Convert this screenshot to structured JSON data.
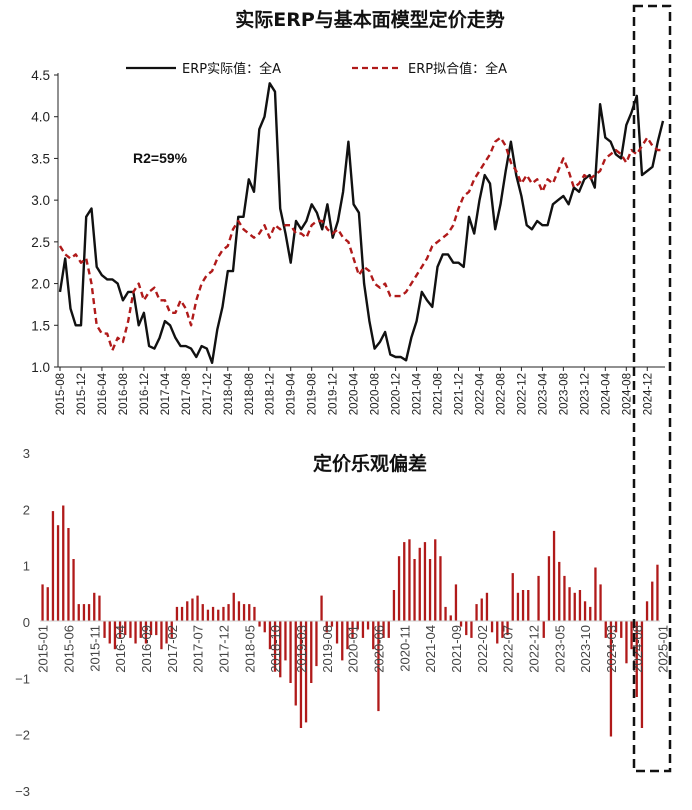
{
  "chart_data": [
    {
      "type": "line",
      "title": "实际ERP与基本面模型定价走势",
      "annotation": "R2=59%",
      "ylim": [
        1.0,
        4.5
      ],
      "yticks": [
        "1.0",
        "1.5",
        "2.0",
        "2.5",
        "3.0",
        "3.5",
        "4.0",
        "4.5"
      ],
      "x_start": "2015-08",
      "xtick_labels": [
        "2015-08",
        "2015-12",
        "2016-04",
        "2016-08",
        "2016-12",
        "2017-04",
        "2017-08",
        "2017-12",
        "2018-04",
        "2018-08",
        "2018-12",
        "2019-04",
        "2019-08",
        "2019-12",
        "2020-04",
        "2020-08",
        "2020-12",
        "2021-04",
        "2021-08",
        "2021-12",
        "2022-04",
        "2022-08",
        "2022-12",
        "2023-04",
        "2023-08",
        "2023-12",
        "2024-04",
        "2024-08",
        "2024-12"
      ],
      "legend_position": "top",
      "series": [
        {
          "name": "ERP实际值：全A",
          "color": "#111111",
          "style": "solid",
          "values": [
            1.9,
            2.3,
            1.7,
            1.5,
            1.5,
            2.8,
            2.9,
            2.2,
            2.1,
            2.05,
            2.05,
            2.0,
            1.8,
            1.9,
            1.9,
            1.5,
            1.65,
            1.25,
            1.22,
            1.35,
            1.55,
            1.5,
            1.35,
            1.25,
            1.25,
            1.22,
            1.12,
            1.25,
            1.22,
            1.05,
            1.45,
            1.72,
            2.15,
            2.15,
            2.8,
            2.8,
            3.25,
            3.1,
            3.85,
            4.0,
            4.4,
            4.3,
            2.9,
            2.6,
            2.25,
            2.75,
            2.65,
            2.75,
            2.95,
            2.85,
            2.65,
            2.95,
            2.55,
            2.75,
            3.1,
            3.7,
            2.95,
            2.85,
            2.0,
            1.55,
            1.22,
            1.3,
            1.42,
            1.15,
            1.12,
            1.12,
            1.08,
            1.35,
            1.55,
            1.9,
            1.8,
            1.72,
            2.2,
            2.35,
            2.35,
            2.25,
            2.25,
            2.2,
            2.8,
            2.6,
            3.0,
            3.3,
            3.2,
            2.65,
            2.95,
            3.35,
            3.7,
            3.3,
            3.05,
            2.7,
            2.65,
            2.75,
            2.7,
            2.7,
            2.95,
            3.0,
            3.05,
            2.95,
            3.15,
            3.1,
            3.25,
            3.3,
            3.15,
            4.15,
            3.75,
            3.7,
            3.55,
            3.5,
            3.9,
            4.05,
            4.25,
            3.3,
            3.35,
            3.4,
            3.7,
            3.95
          ]
        },
        {
          "name": "ERP拟合值：全A",
          "color": "#b01a1a",
          "style": "dashed",
          "values": [
            2.45,
            2.35,
            2.3,
            2.35,
            2.25,
            2.3,
            2.0,
            1.5,
            1.4,
            1.4,
            1.2,
            1.35,
            1.3,
            1.55,
            1.9,
            2.0,
            1.8,
            1.9,
            1.95,
            1.8,
            1.8,
            1.65,
            1.65,
            1.8,
            1.7,
            1.5,
            1.8,
            2.0,
            2.1,
            2.15,
            2.3,
            2.4,
            2.45,
            2.65,
            2.75,
            2.65,
            2.6,
            2.55,
            2.6,
            2.7,
            2.55,
            2.7,
            2.65,
            2.7,
            2.7,
            2.6,
            2.6,
            2.55,
            2.7,
            2.75,
            2.75,
            2.65,
            2.6,
            2.65,
            2.55,
            2.5,
            2.3,
            2.1,
            2.2,
            2.15,
            2.0,
            1.95,
            2.0,
            1.85,
            1.85,
            1.85,
            1.9,
            2.0,
            2.1,
            2.2,
            2.3,
            2.45,
            2.5,
            2.55,
            2.6,
            2.7,
            2.9,
            3.05,
            3.1,
            3.25,
            3.35,
            3.45,
            3.55,
            3.7,
            3.75,
            3.65,
            3.45,
            3.35,
            3.2,
            3.3,
            3.2,
            3.25,
            3.1,
            3.25,
            3.2,
            3.35,
            3.5,
            3.35,
            3.15,
            3.2,
            3.3,
            3.25,
            3.3,
            3.35,
            3.5,
            3.55,
            3.6,
            3.55,
            3.45,
            3.6,
            3.55,
            3.65,
            3.75,
            3.65,
            3.6,
            3.6
          ]
        }
      ]
    },
    {
      "type": "bar",
      "title": "定价乐观偏差",
      "ylim": [
        -3,
        3
      ],
      "yticks": [
        "−3",
        "−2",
        "−1",
        "0",
        "1",
        "2",
        "3"
      ],
      "x_start": "2015-01",
      "xtick_labels": [
        "2015-01",
        "2015-06",
        "2015-11",
        "2016-04",
        "2016-09",
        "2017-02",
        "2017-07",
        "2017-12",
        "2018-05",
        "2018-10",
        "2019-03",
        "2019-08",
        "2020-01",
        "2020-06",
        "2020-11",
        "2021-04",
        "2021-09",
        "2022-02",
        "2022-07",
        "2022-12",
        "2023-05",
        "2023-10",
        "2024-03",
        "2024-08",
        "2025-01"
      ],
      "color": "#b01a1a",
      "values": [
        0.65,
        0.6,
        1.95,
        1.7,
        2.05,
        1.65,
        1.1,
        0.3,
        0.3,
        0.3,
        0.5,
        0.45,
        -0.3,
        -0.4,
        -0.5,
        -0.3,
        -0.25,
        -0.3,
        -0.4,
        -0.3,
        -0.4,
        -0.25,
        -0.25,
        -0.5,
        -0.4,
        -0.3,
        0.25,
        0.25,
        0.35,
        0.4,
        0.45,
        0.3,
        0.2,
        0.25,
        0.2,
        0.25,
        0.3,
        0.5,
        0.35,
        0.3,
        0.3,
        0.25,
        -0.1,
        -0.2,
        -0.5,
        -0.9,
        -1.0,
        -0.7,
        -1.1,
        -1.5,
        -1.9,
        -1.8,
        -1.1,
        -0.8,
        0.45,
        -0.2,
        -0.1,
        -0.4,
        -0.7,
        -0.5,
        -0.3,
        -0.15,
        -0.3,
        -0.15,
        -0.5,
        -1.6,
        -0.3,
        -0.3,
        0.55,
        1.15,
        1.4,
        1.45,
        1.1,
        1.3,
        1.4,
        1.1,
        1.45,
        1.15,
        0.25,
        0.1,
        0.65,
        -0.1,
        -0.25,
        -0.3,
        0.3,
        0.4,
        0.5,
        -0.2,
        -0.4,
        -0.3,
        -0.25,
        0.85,
        0.5,
        0.55,
        0.55,
        0.0,
        0.8,
        -0.3,
        1.15,
        1.6,
        1.05,
        0.8,
        0.6,
        0.5,
        0.55,
        0.35,
        0.25,
        0.95,
        0.65,
        -0.3,
        -2.05,
        -0.2,
        -0.3,
        -0.75,
        -0.5,
        -1.35,
        -1.9,
        0.35,
        0.7,
        1.0
      ]
    }
  ]
}
